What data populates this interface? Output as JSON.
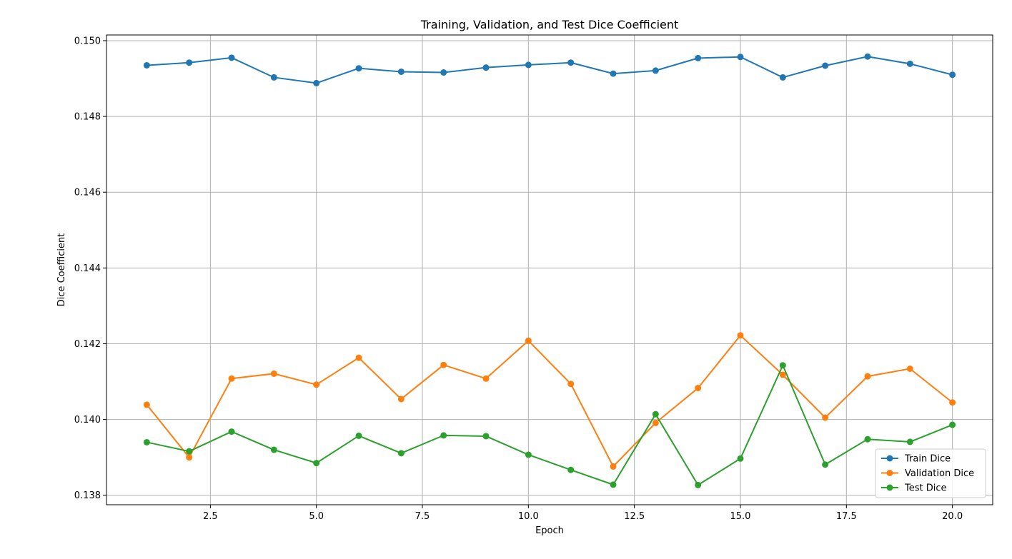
{
  "chart_data": {
    "type": "line",
    "title": "Training, Validation, and Test Dice Coefficient",
    "xlabel": "Epoch",
    "ylabel": "Dice Coefficient",
    "x": [
      1,
      2,
      3,
      4,
      5,
      6,
      7,
      8,
      9,
      10,
      11,
      12,
      13,
      14,
      15,
      16,
      17,
      18,
      19,
      20
    ],
    "xlim": [
      0.05,
      20.95
    ],
    "ylim": [
      0.13775,
      0.15015
    ],
    "xticks": [
      2.5,
      5.0,
      7.5,
      10.0,
      12.5,
      15.0,
      17.5,
      20.0
    ],
    "xtick_labels": [
      "2.5",
      "5.0",
      "7.5",
      "10.0",
      "12.5",
      "15.0",
      "17.5",
      "20.0"
    ],
    "yticks": [
      0.138,
      0.14,
      0.142,
      0.144,
      0.146,
      0.148,
      0.15
    ],
    "ytick_labels": [
      "0.138",
      "0.140",
      "0.142",
      "0.144",
      "0.146",
      "0.148",
      "0.150"
    ],
    "grid": true,
    "legend_position": "bottom-right",
    "series": [
      {
        "name": "Train Dice",
        "color": "#1f77b4",
        "values": [
          0.14935,
          0.14942,
          0.14955,
          0.14903,
          0.14888,
          0.14927,
          0.14918,
          0.14916,
          0.14929,
          0.14936,
          0.14942,
          0.14913,
          0.14921,
          0.14954,
          0.14957,
          0.14903,
          0.14934,
          0.14958,
          0.14939,
          0.1491
        ]
      },
      {
        "name": "Validation Dice",
        "color": "#ff7f0e",
        "values": [
          0.14039,
          0.139,
          0.14108,
          0.14121,
          0.14092,
          0.14163,
          0.14054,
          0.14144,
          0.14108,
          0.14208,
          0.14094,
          0.13876,
          0.13991,
          0.14083,
          0.14222,
          0.14118,
          0.14005,
          0.14114,
          0.14134,
          0.14045
        ]
      },
      {
        "name": "Test Dice",
        "color": "#2ca02c",
        "values": [
          0.1394,
          0.13916,
          0.13968,
          0.1392,
          0.13885,
          0.13957,
          0.13911,
          0.13958,
          0.13956,
          0.13907,
          0.13867,
          0.13828,
          0.14014,
          0.13827,
          0.13897,
          0.14143,
          0.13881,
          0.13948,
          0.13941,
          0.13986
        ]
      }
    ]
  }
}
